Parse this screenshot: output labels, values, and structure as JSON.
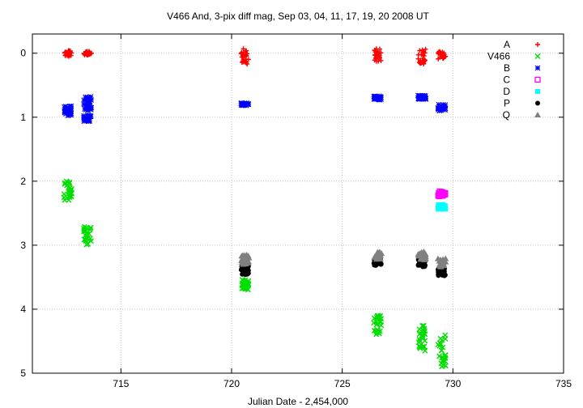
{
  "chart_data": {
    "type": "scatter",
    "title": "V466 And,  3-pix diff mag, Sep 03, 04, 11, 17, 19, 20 2008 UT",
    "xlabel": "Julian Date - 2,454,000",
    "ylabel": "",
    "xlim": [
      711,
      735
    ],
    "ylim": [
      5,
      -0.3
    ],
    "y_inverted": true,
    "x_ticks": [
      715,
      720,
      725,
      730,
      735
    ],
    "y_ticks": [
      0,
      1,
      2,
      3,
      4,
      5
    ],
    "grid": true,
    "legend_position": "top-right",
    "series": [
      {
        "name": "A",
        "marker": "plus",
        "color": "#ff0000",
        "points": [
          {
            "x": 712.6,
            "y": 0.0,
            "spread": 0.05
          },
          {
            "x": 713.5,
            "y": 0.0,
            "spread": 0.03
          },
          {
            "x": 720.6,
            "y": 0.05,
            "spread": 0.12
          },
          {
            "x": 726.6,
            "y": 0.03,
            "spread": 0.1
          },
          {
            "x": 728.6,
            "y": 0.05,
            "spread": 0.12
          },
          {
            "x": 729.5,
            "y": 0.03,
            "spread": 0.06
          }
        ]
      },
      {
        "name": "V466",
        "marker": "cross",
        "color": "#00dd00",
        "points": [
          {
            "x": 712.6,
            "y": 2.15,
            "spread": 0.15
          },
          {
            "x": 713.5,
            "y": 2.85,
            "spread": 0.15
          },
          {
            "x": 720.6,
            "y": 3.62,
            "spread": 0.08
          },
          {
            "x": 726.6,
            "y": 4.25,
            "spread": 0.15
          },
          {
            "x": 728.6,
            "y": 4.45,
            "spread": 0.2
          },
          {
            "x": 729.5,
            "y": 4.65,
            "spread": 0.25
          }
        ]
      },
      {
        "name": "B",
        "marker": "star",
        "color": "#0000ff",
        "points": [
          {
            "x": 712.6,
            "y": 0.9,
            "spread": 0.08
          },
          {
            "x": 713.5,
            "y": 0.8,
            "spread": 0.12
          },
          {
            "x": 713.5,
            "y": 1.02,
            "spread": 0.05
          },
          {
            "x": 720.6,
            "y": 0.8,
            "spread": 0.02
          },
          {
            "x": 726.6,
            "y": 0.7,
            "spread": 0.03
          },
          {
            "x": 728.6,
            "y": 0.69,
            "spread": 0.03
          },
          {
            "x": 729.5,
            "y": 0.85,
            "spread": 0.05
          }
        ]
      },
      {
        "name": "C",
        "marker": "square",
        "color": "#ff00ff",
        "points": [
          {
            "x": 729.5,
            "y": 2.2,
            "spread": 0.04
          }
        ]
      },
      {
        "name": "D",
        "marker": "filled-square",
        "color": "#00ffff",
        "points": [
          {
            "x": 729.5,
            "y": 2.4,
            "spread": 0.04
          }
        ]
      },
      {
        "name": "P",
        "marker": "filled-circle",
        "color": "#000000",
        "points": [
          {
            "x": 720.6,
            "y": 3.38,
            "spread": 0.1
          },
          {
            "x": 726.6,
            "y": 3.27,
            "spread": 0.05
          },
          {
            "x": 728.6,
            "y": 3.28,
            "spread": 0.06
          },
          {
            "x": 729.5,
            "y": 3.42,
            "spread": 0.06
          }
        ]
      },
      {
        "name": "Q",
        "marker": "filled-triangle",
        "color": "#808080",
        "points": [
          {
            "x": 720.6,
            "y": 3.22,
            "spread": 0.08
          },
          {
            "x": 726.6,
            "y": 3.17,
            "spread": 0.06
          },
          {
            "x": 728.6,
            "y": 3.17,
            "spread": 0.07
          },
          {
            "x": 729.5,
            "y": 3.28,
            "spread": 0.07
          }
        ]
      }
    ]
  }
}
